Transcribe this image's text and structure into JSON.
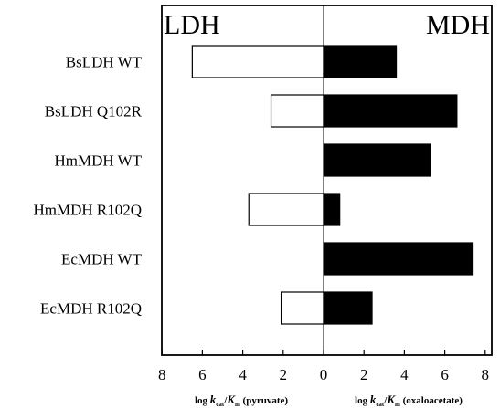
{
  "chart_data": {
    "type": "bar",
    "orientation": "horizontal-diverging",
    "categories": [
      "BsLDH WT",
      "BsLDH Q102R",
      "HmMDH WT",
      "HmMDH R102Q",
      "EcMDH WT",
      "EcMDH R102Q"
    ],
    "series": [
      {
        "name": "LDH",
        "values": [
          6.5,
          2.6,
          null,
          3.7,
          null,
          2.1
        ],
        "fill": "#ffffff",
        "side": "left"
      },
      {
        "name": "MDH",
        "values": [
          3.6,
          6.6,
          5.3,
          0.8,
          7.4,
          2.4
        ],
        "fill": "#000000",
        "side": "right"
      }
    ],
    "panel_labels": {
      "left": "LDH",
      "right": "MDH"
    },
    "xlabel_left": {
      "pre": "log ",
      "k": "k",
      "cat": "cat",
      "slash": "/",
      "K": "K",
      "m": "m",
      "post": " (pyruvate)"
    },
    "xlabel_right": {
      "pre": "log ",
      "k": "k",
      "cat": "cat",
      "slash": "/",
      "K": "K",
      "m": "m",
      "post": " (oxaloacetate)"
    },
    "xticks": [
      8,
      6,
      4,
      2,
      0,
      2,
      4,
      6,
      8
    ],
    "xlim": [
      -8,
      8
    ],
    "grid": false,
    "legend": "none",
    "colors": {
      "axis": "#000000",
      "ldh_fill": "#ffffff",
      "mdh_fill": "#000000"
    }
  }
}
